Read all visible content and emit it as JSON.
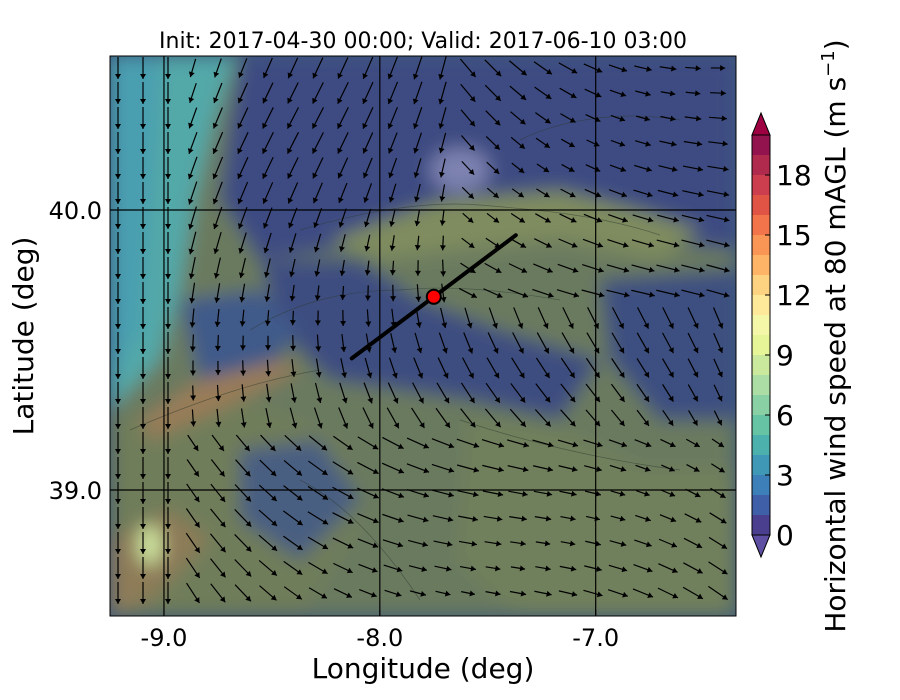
{
  "chart_data": {
    "type": "heatmap",
    "title": "Init: 2017-04-30 00:00; Valid: 2017-06-10 03:00",
    "xlabel": "Longitude (deg)",
    "ylabel": "Latitude (deg)",
    "xlim": [
      -9.25,
      -6.35
    ],
    "ylim": [
      38.55,
      40.55
    ],
    "xticks": [
      {
        "value": -9.0,
        "label": "-9.0"
      },
      {
        "value": -8.0,
        "label": "-8.0"
      },
      {
        "value": -7.0,
        "label": "-7.0"
      }
    ],
    "yticks": [
      {
        "value": 40.0,
        "label": "40.0"
      },
      {
        "value": 39.0,
        "label": "39.0"
      }
    ],
    "grid_lon": [
      -9.0,
      -8.0,
      -7.0
    ],
    "grid_lat": [
      40.0,
      39.0
    ],
    "colorbar": {
      "label": "Horizontal wind speed at 80 mAGL (m s^-1)",
      "label_main": "Horizontal wind speed at 80 mAGL (m s",
      "label_sup": "−1",
      "label_end": ")",
      "min": 0,
      "max": 20,
      "step": 1,
      "extend": "both",
      "ticks": [
        0,
        3,
        6,
        9,
        12,
        15,
        18
      ],
      "tick_labels": [
        "0",
        "3",
        "6",
        "9",
        "12",
        "15",
        "18"
      ],
      "colors": [
        "#4a3f8f",
        "#3f5fa8",
        "#3d7fb8",
        "#3f98b6",
        "#4cb0ad",
        "#66c3a4",
        "#89d0a4",
        "#abdda4",
        "#cbe99c",
        "#e6f598",
        "#f4f7a8",
        "#fee99a",
        "#fdd281",
        "#fdb466",
        "#f99656",
        "#f1744a",
        "#e05446",
        "#cc3d4d",
        "#b02a4e",
        "#93134f"
      ],
      "under_color": "#5e4fa2",
      "over_color": "#9e0142"
    },
    "cross_section_line": {
      "start": [
        -8.13,
        39.47
      ],
      "end": [
        -7.37,
        39.91
      ]
    },
    "marker": {
      "lon": -7.75,
      "lat": 39.69,
      "color": "#ff0000"
    }
  }
}
